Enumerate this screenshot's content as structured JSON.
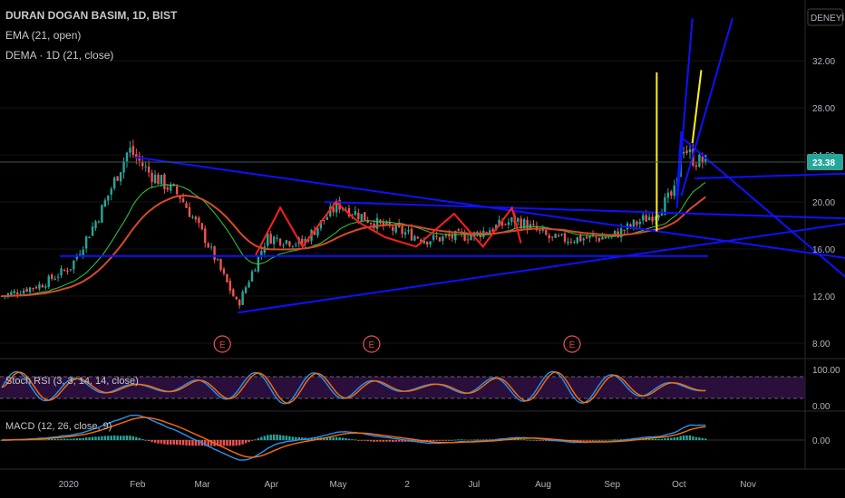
{
  "header": {
    "title": "DURAN DOGAN BASIM, 1D, BIST",
    "ema_label": "EMA (21, open)",
    "dema_label": "DEMA · 1D (21, close)"
  },
  "scale_button": "DENEYİN",
  "last_price": "23.38",
  "colors": {
    "up": "#26a69a",
    "down": "#ef5350",
    "ema": "#2ecc40",
    "dema": "#d64a28",
    "trendline": "#1010ff",
    "vertical": "#ffee22",
    "zigzag": "#ff2020",
    "rsi_k": "#2196f3",
    "rsi_d": "#ff6d00",
    "rsi_band": "#2a0f3d",
    "macd_line": "#2196f3",
    "signal_line": "#ff6d00"
  },
  "chart_data": [
    {
      "type": "candlestick",
      "title": "DURAN DOGAN BASIM, 1D, BIST",
      "y_ticks": [
        "32.00",
        "28.00",
        "24.00",
        "20.00",
        "16.00",
        "12.00",
        "8.00"
      ],
      "ylim": [
        6.6,
        35.6
      ],
      "x_ticks": [
        "2020",
        "Feb",
        "Mar",
        "Apr",
        "May",
        "2",
        "Jul",
        "Aug",
        "Sep",
        "Oct",
        "Nov"
      ],
      "series": [
        {
          "name": "EMA (21, open)"
        },
        {
          "name": "DEMA · 1D (21, close)"
        }
      ],
      "close_keypoints": [
        {
          "date": "2019-12-02",
          "value": 12.0
        },
        {
          "date": "2019-12-20",
          "value": 13.0
        },
        {
          "date": "2020-01-02",
          "value": 14.5
        },
        {
          "date": "2020-01-15",
          "value": 19.0
        },
        {
          "date": "2020-01-28",
          "value": 24.5
        },
        {
          "date": "2020-02-06",
          "value": 22.5
        },
        {
          "date": "2020-02-20",
          "value": 20.5
        },
        {
          "date": "2020-03-02",
          "value": 17.0
        },
        {
          "date": "2020-03-17",
          "value": 11.2
        },
        {
          "date": "2020-03-30",
          "value": 17.0
        },
        {
          "date": "2020-04-15",
          "value": 16.5
        },
        {
          "date": "2020-05-01",
          "value": 19.8
        },
        {
          "date": "2020-05-20",
          "value": 18.0
        },
        {
          "date": "2020-06-10",
          "value": 16.8
        },
        {
          "date": "2020-07-01",
          "value": 17.2
        },
        {
          "date": "2020-07-20",
          "value": 18.5
        },
        {
          "date": "2020-08-05",
          "value": 16.8
        },
        {
          "date": "2020-08-31",
          "value": 17.0
        },
        {
          "date": "2020-09-20",
          "value": 19.0
        },
        {
          "date": "2020-09-30",
          "value": 21.0
        },
        {
          "date": "2020-10-02",
          "value": 25.0
        },
        {
          "date": "2020-10-08",
          "value": 23.5
        },
        {
          "date": "2020-10-14",
          "value": 23.38
        }
      ],
      "earnings_marker": "E",
      "earnings_dates": [
        "2020-03-10",
        "2020-05-16",
        "2020-08-14"
      ]
    },
    {
      "type": "line",
      "title": "Stoch RSI (3, 3, 14, 14, close)",
      "y_ticks": [
        "100.00",
        "0.00"
      ],
      "ylim": [
        0,
        100
      ],
      "bands": [
        20,
        80
      ]
    },
    {
      "type": "histogram",
      "title": "MACD (12, 26, close, 9)",
      "y_ticks": [
        "0.00"
      ]
    }
  ]
}
